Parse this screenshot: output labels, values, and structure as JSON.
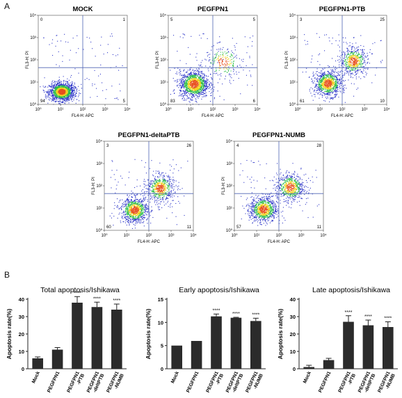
{
  "panel_labels": [
    "A",
    "B"
  ],
  "colors": {
    "dot_low": "#2c35c8",
    "dot_mid": "#2fbf4a",
    "dot_high": "#f0d21e",
    "dot_peak": "#e8501e",
    "quadrant_line": "#4f64b4",
    "bar_fill": "#2b2b2b",
    "axis": "#222222"
  },
  "flow_axes": {
    "x_label": "FL4-H: APC",
    "y_label": "FL3-H: PI",
    "x_ticks": [
      "10⁰",
      "10¹",
      "10²",
      "10³",
      "10⁴"
    ],
    "y_ticks": [
      "10⁰",
      "10¹",
      "10²",
      "10³",
      "10⁴"
    ],
    "scale": "log"
  },
  "chart_data": [
    {
      "type": "scatter",
      "title": "MOCK",
      "quadrant_percent": {
        "upper_left": "0",
        "upper_right": "1",
        "lower_left": "94",
        "lower_right": "5"
      },
      "populations": [
        {
          "cx": 1.05,
          "cy": 0.58,
          "sx": 0.28,
          "sy": 0.2,
          "weight": 1
        }
      ]
    },
    {
      "type": "scatter",
      "title": "PEGFPN1",
      "quadrant_percent": {
        "upper_left": "5",
        "upper_right": "5",
        "lower_left": "83",
        "lower_right": "6"
      },
      "populations": [
        {
          "cx": 1.15,
          "cy": 0.92,
          "sx": 0.32,
          "sy": 0.3,
          "weight": 0.85
        },
        {
          "cx": 2.45,
          "cy": 1.9,
          "sx": 0.4,
          "sy": 0.35,
          "weight": 0.15
        }
      ]
    },
    {
      "type": "scatter",
      "title": "PEGFPN1-PTB",
      "quadrant_percent": {
        "upper_left": "3",
        "upper_right": "25",
        "lower_left": "61",
        "lower_right": "10"
      },
      "populations": [
        {
          "cx": 1.35,
          "cy": 0.95,
          "sx": 0.3,
          "sy": 0.28,
          "weight": 0.62
        },
        {
          "cx": 2.5,
          "cy": 1.95,
          "sx": 0.3,
          "sy": 0.3,
          "weight": 0.38
        }
      ]
    },
    {
      "type": "scatter",
      "title": "PEGFPN1-deltaPTB",
      "quadrant_percent": {
        "upper_left": "3",
        "upper_right": "26",
        "lower_left": "60",
        "lower_right": "11"
      },
      "populations": [
        {
          "cx": 1.35,
          "cy": 0.92,
          "sx": 0.3,
          "sy": 0.28,
          "weight": 0.6
        },
        {
          "cx": 2.5,
          "cy": 1.9,
          "sx": 0.3,
          "sy": 0.3,
          "weight": 0.4
        }
      ]
    },
    {
      "type": "scatter",
      "title": "PEGFPN1-NUMB",
      "quadrant_percent": {
        "upper_left": "4",
        "upper_right": "28",
        "lower_left": "57",
        "lower_right": "11"
      },
      "populations": [
        {
          "cx": 1.3,
          "cy": 0.95,
          "sx": 0.3,
          "sy": 0.28,
          "weight": 0.58
        },
        {
          "cx": 2.5,
          "cy": 1.95,
          "sx": 0.3,
          "sy": 0.3,
          "weight": 0.42
        }
      ]
    },
    {
      "type": "bar",
      "title": "Total apoptosis/Ishikawa",
      "ylabel": "Apoptosis rate(%)",
      "ylim": [
        0,
        40
      ],
      "yticks": [
        "0",
        "10",
        "20",
        "30",
        "40"
      ],
      "categories": [
        "Mock",
        "PEGFPN1",
        "PEGFPN1\n-PTB",
        "PEGFPN1\n-deltPTB",
        "PEGFPN1\n-NUMB"
      ],
      "values": [
        6,
        11,
        38,
        35.5,
        34
      ],
      "errors": [
        0.8,
        1.2,
        3.5,
        2.8,
        3.2
      ],
      "significance": [
        "",
        "",
        "****",
        "****",
        "****"
      ]
    },
    {
      "type": "bar",
      "title": "Early apoptosis/Ishikawa",
      "ylabel": "Apoptosis rate(%)",
      "ylim": [
        0,
        15
      ],
      "yticks": [
        "0",
        "5",
        "10",
        "15"
      ],
      "categories": [
        "Mock",
        "PEGFPN1",
        "PEGFPN1\n-PTB",
        "PEGFPN1\n-deltPTB",
        "PEGFPN1\n-NUMB"
      ],
      "values": [
        5,
        6,
        11.3,
        11,
        10.3
      ],
      "errors": [
        0,
        0,
        0.5,
        0.1,
        0.6
      ],
      "significance": [
        "",
        "",
        "****",
        "****",
        "****"
      ]
    },
    {
      "type": "bar",
      "title": "Late apoptosis/Ishikawa",
      "ylabel": "Apoptosis rate(%)",
      "ylim": [
        0,
        40
      ],
      "yticks": [
        "0",
        "10",
        "20",
        "30",
        "40"
      ],
      "categories": [
        "Mock",
        "PEGFPN1",
        "PEGFPN1\n-PTB",
        "PEGFPN1\n-deltPTB",
        "PEGFPN1\n-NUMB"
      ],
      "values": [
        1,
        5,
        27,
        25,
        24
      ],
      "errors": [
        1,
        1,
        3.5,
        3,
        3
      ],
      "significance": [
        "",
        "",
        "****",
        "****",
        "****"
      ]
    }
  ]
}
